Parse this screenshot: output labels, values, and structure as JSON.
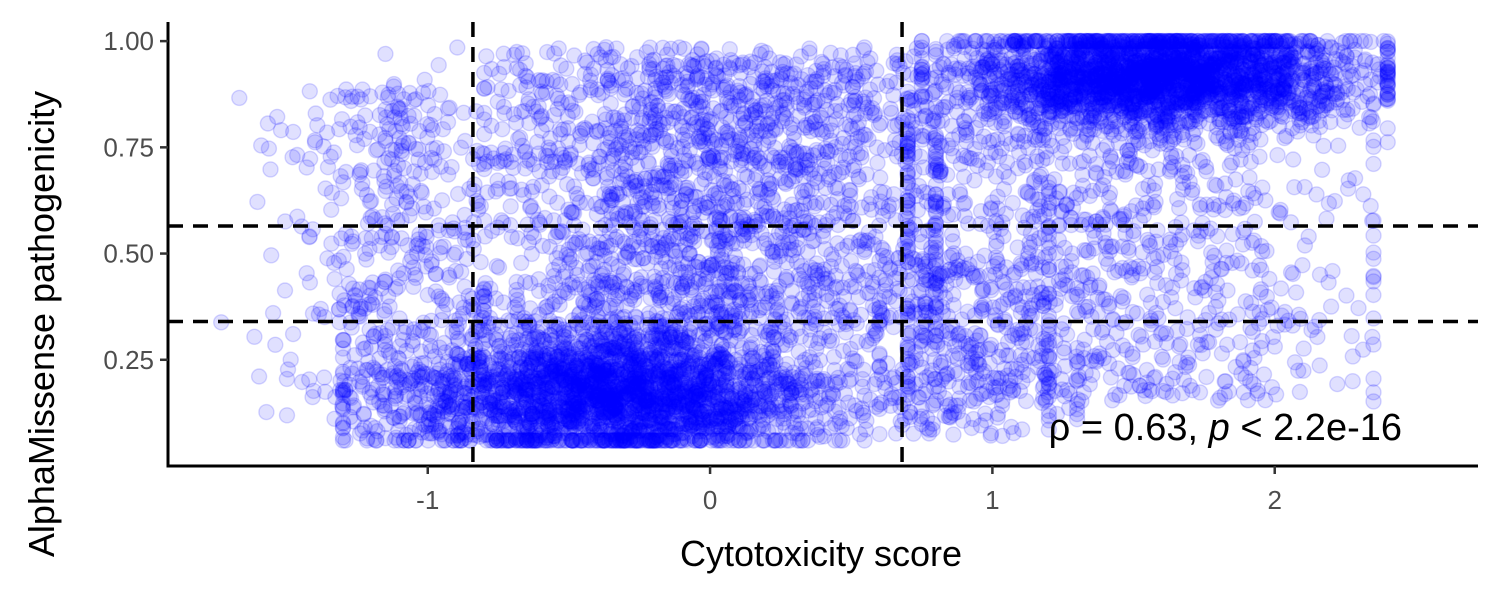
{
  "chart_data": {
    "type": "scatter",
    "xlabel": "Cytotoxicity score",
    "ylabel": "AlphaMissense pathogenicity",
    "xlim": [
      -1.92,
      2.72
    ],
    "ylim": [
      0.0,
      1.045
    ],
    "x_ticks": [
      -1,
      0,
      1,
      2
    ],
    "x_tick_labels": [
      "-1",
      "0",
      "1",
      "2"
    ],
    "y_ticks": [
      0.25,
      0.5,
      0.75,
      1.0
    ],
    "y_tick_labels": [
      "0.25",
      "0.50",
      "0.75",
      "1.00"
    ],
    "grid": false,
    "point_color": "#0000ff",
    "point_alpha": 0.12,
    "point_count": 9000,
    "reference_lines": {
      "vertical": [
        -0.84,
        0.68
      ],
      "horizontal": [
        0.565,
        0.34
      ],
      "style": "dashed",
      "color": "#000000"
    },
    "annotation": {
      "rho_symbol": "ρ",
      "rho_text": " = 0.63, ",
      "p_symbol": "p",
      "p_text": " < 2.2e-16",
      "position": "bottom-right"
    },
    "series": [
      {
        "clusters": [
          {
            "n": 2600,
            "x_mean": -0.35,
            "x_sd": 0.38,
            "x_range": [
              -1.3,
              0.75
            ],
            "y_mean": 0.17,
            "y_sd": 0.08,
            "y_range": [
              0.06,
              0.42
            ]
          },
          {
            "n": 1500,
            "x_mean": -0.05,
            "x_sd": 0.45,
            "x_range": [
              -1.15,
              0.8
            ],
            "y_range": [
              0.3,
              0.99
            ]
          },
          {
            "n": 2500,
            "x_mean": 1.6,
            "x_sd": 0.35,
            "x_range": [
              0.75,
              2.4
            ],
            "y_mean": 0.92,
            "y_sd": 0.06,
            "y_range": [
              0.7,
              1.0
            ]
          },
          {
            "n": 1000,
            "x_mean": 1.4,
            "x_sd": 0.45,
            "x_range": [
              0.7,
              2.35
            ],
            "y_range": [
              0.15,
              0.9
            ]
          },
          {
            "n": 800,
            "x_mean": 0.3,
            "x_sd": 0.5,
            "x_range": [
              -0.8,
              1.2
            ],
            "y_range": [
              0.08,
              0.95
            ]
          },
          {
            "n": 400,
            "x_mean": -1.15,
            "x_sd": 0.18,
            "x_range": [
              -1.75,
              -0.8
            ],
            "y_range": [
              0.07,
              0.9
            ]
          },
          {
            "n": 200,
            "x_mean": 0.9,
            "x_sd": 0.2,
            "x_range": [
              0.6,
              1.3
            ],
            "y_range": [
              0.07,
              0.5
            ]
          }
        ]
      }
    ]
  }
}
